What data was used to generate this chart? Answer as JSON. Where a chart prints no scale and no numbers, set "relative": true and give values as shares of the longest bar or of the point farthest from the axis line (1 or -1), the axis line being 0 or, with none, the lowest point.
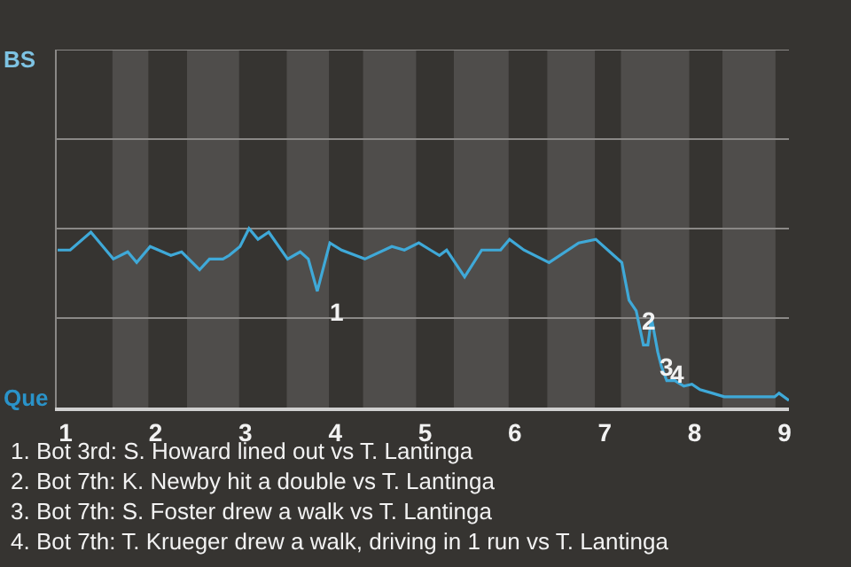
{
  "chart_data": {
    "type": "line",
    "relative": true,
    "x": [
      0.91,
      1.05,
      1.28,
      1.53,
      1.69,
      1.79,
      1.94,
      2.17,
      2.29,
      2.49,
      2.6,
      2.75,
      2.82,
      2.94,
      3.04,
      3.14,
      3.26,
      3.47,
      3.61,
      3.7,
      3.8,
      3.94,
      4.07,
      4.33,
      4.63,
      4.77,
      4.93,
      5.06,
      5.16,
      5.24,
      5.44,
      5.63,
      5.84,
      5.94,
      6.1,
      6.38,
      6.71,
      6.9,
      7.1,
      7.19,
      7.27,
      7.35,
      7.43,
      7.48,
      7.52,
      7.59,
      7.63,
      7.69,
      7.78,
      7.88,
      7.97,
      8.06,
      8.2,
      8.33,
      8.89,
      8.94,
      9.05
    ],
    "series": [
      {
        "color": "#3fa9d8",
        "values": [
          0.88,
          0.88,
          0.98,
          0.83,
          0.87,
          0.81,
          0.9,
          0.85,
          0.87,
          0.77,
          0.83,
          0.83,
          0.85,
          0.9,
          1,
          0.94,
          0.98,
          0.83,
          0.87,
          0.83,
          0.65,
          0.92,
          0.88,
          0.83,
          0.9,
          0.88,
          0.92,
          0.88,
          0.85,
          0.88,
          0.73,
          0.88,
          0.88,
          0.94,
          0.88,
          0.81,
          0.92,
          0.94,
          0.85,
          0.81,
          0.6,
          0.54,
          0.35,
          0.35,
          0.5,
          0.31,
          0.23,
          0.15,
          0.15,
          0.12,
          0.13,
          0.1,
          0.08,
          0.06,
          0.06,
          0.08,
          0.04
        ]
      }
    ],
    "xlim": [
      0.9,
      9.05
    ],
    "xticks": [
      1,
      2,
      3,
      4,
      5,
      6,
      7,
      8,
      9
    ],
    "marker": "none",
    "line_style": "solid",
    "ref_lines": [
      {
        "axis": "y",
        "value": 0.5,
        "color": "#8a8886"
      },
      {
        "axis": "y",
        "value": 1,
        "color": "#8a8886"
      },
      {
        "axis": "y",
        "value": 1.5,
        "color": "#8a8886"
      },
      {
        "axis": "y",
        "value": 2,
        "color": "#8a8886"
      }
    ],
    "bands": [
      {
        "axis": "x",
        "from": 1.52,
        "to": 1.92,
        "color": "#4f4d4b"
      },
      {
        "axis": "x",
        "from": 2.35,
        "to": 2.93,
        "color": "#4f4d4b"
      },
      {
        "axis": "x",
        "from": 3.46,
        "to": 3.93,
        "color": "#4f4d4b"
      },
      {
        "axis": "x",
        "from": 4.31,
        "to": 4.9,
        "color": "#4f4d4b"
      },
      {
        "axis": "x",
        "from": 5.32,
        "to": 5.93,
        "color": "#4f4d4b"
      },
      {
        "axis": "x",
        "from": 6.36,
        "to": 6.89,
        "color": "#4f4d4b"
      },
      {
        "axis": "x",
        "from": 7.18,
        "to": 7.94,
        "color": "#4f4d4b"
      },
      {
        "axis": "x",
        "from": 8.31,
        "to": 8.9,
        "color": "#4f4d4b"
      }
    ],
    "annotations": [
      {
        "text": "1",
        "x": 3.8,
        "y": 0.65
      },
      {
        "text": "2",
        "x": 7.27,
        "y": 0.6
      },
      {
        "text": "3",
        "x": 7.48,
        "y": 0.35
      },
      {
        "text": "4",
        "x": 7.59,
        "y": 0.31
      },
      "BS",
      "Que",
      "1. Bot 3rd: S. Howard lined out vs T. Lantinga",
      "2. Bot 7th: K. Newby hit a double vs T. Lantinga",
      "3. Bot 7th: S. Foster drew a walk vs T. Lantinga",
      "4. Bot 7th: T. Krueger drew a walk, driving in 1 run vs T. Lantinga"
    ]
  }
}
